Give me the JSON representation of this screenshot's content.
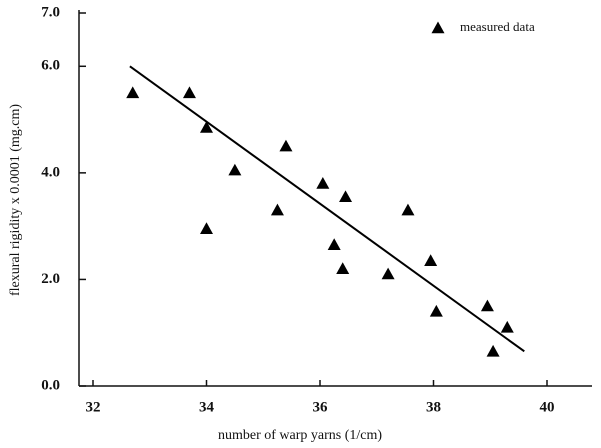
{
  "chart_data": {
    "type": "scatter",
    "x_label": "number of warp yarns (1/cm)",
    "y_label": "flexural rigidity x 0.0001 (mg.cm)",
    "series": [
      {
        "name": "measured data",
        "color": "#000000",
        "x": [
          32.7,
          33.7,
          34.0,
          34.0,
          34.5,
          35.25,
          35.4,
          36.05,
          36.25,
          36.4,
          36.45,
          37.2,
          37.55,
          37.95,
          38.05,
          38.95,
          39.05,
          39.3
        ],
        "values": [
          5.5,
          5.5,
          4.85,
          2.95,
          4.05,
          3.3,
          4.5,
          3.8,
          2.65,
          2.2,
          3.55,
          2.1,
          3.3,
          2.35,
          1.4,
          1.5,
          0.65,
          1.1
        ]
      }
    ],
    "fit_line": {
      "x": [
        32.65,
        39.6
      ],
      "y": [
        6.0,
        0.65
      ],
      "color": "#000000"
    },
    "xlim": [
      32,
      40
    ],
    "xticks": [
      32,
      34,
      36,
      38,
      40
    ],
    "ylim": [
      0,
      7
    ],
    "yticks": [
      {
        "value": 0,
        "label": "0.0"
      },
      {
        "value": 2,
        "label": "2.0"
      },
      {
        "value": 4,
        "label": "4.0"
      },
      {
        "value": 6,
        "label": "6.0"
      },
      {
        "value": 7,
        "label": "7.0"
      }
    ],
    "legend": "top-right"
  }
}
